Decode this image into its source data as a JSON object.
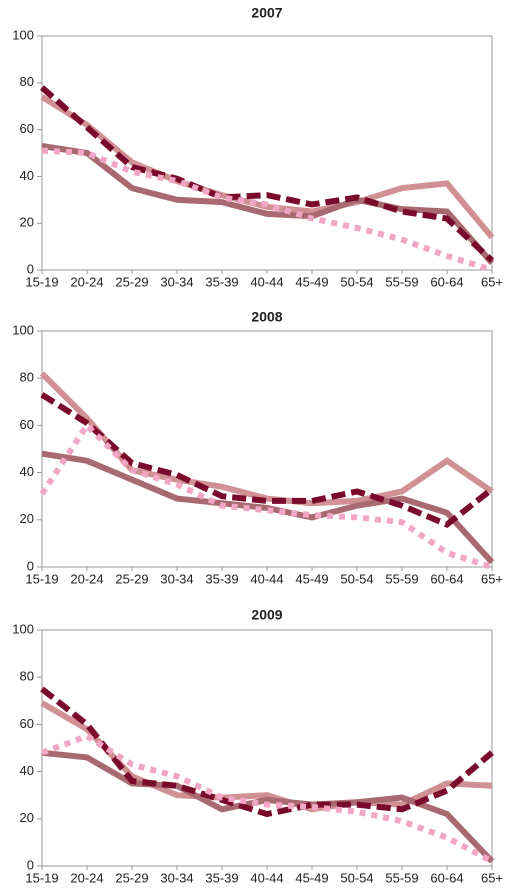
{
  "chart_data": [
    {
      "type": "line",
      "title": "2007",
      "categories": [
        "15-19",
        "20-24",
        "25-29",
        "30-34",
        "35-39",
        "40-44",
        "45-49",
        "50-54",
        "55-59",
        "60-64",
        "65+"
      ],
      "series": [
        {
          "color": "#d09094",
          "style": "solid",
          "values": [
            74,
            62,
            46,
            38,
            32,
            27,
            25,
            29,
            35,
            37,
            14
          ]
        },
        {
          "color": "#a86a70",
          "style": "solid",
          "values": [
            53,
            50,
            35,
            30,
            29,
            24,
            23,
            30,
            26,
            25,
            3
          ]
        },
        {
          "color": "#7a0a2c",
          "style": "dashed",
          "values": [
            78,
            61,
            44,
            39,
            31,
            32,
            28,
            31,
            25,
            22,
            4
          ]
        },
        {
          "color": "#f2a6c6",
          "style": "dotted",
          "values": [
            51,
            50,
            42,
            38,
            31,
            28,
            22,
            18,
            13,
            6,
            0
          ]
        }
      ],
      "ylim": [
        0,
        100
      ],
      "yticks": [
        0,
        20,
        40,
        60,
        80,
        100
      ]
    },
    {
      "type": "line",
      "title": "2008",
      "categories": [
        "15-19",
        "20-24",
        "25-29",
        "30-34",
        "35-39",
        "40-44",
        "45-49",
        "50-54",
        "55-59",
        "60-64",
        "65+"
      ],
      "series": [
        {
          "color": "#d09094",
          "style": "solid",
          "values": [
            82,
            63,
            41,
            37,
            34,
            29,
            27,
            28,
            32,
            45,
            32
          ]
        },
        {
          "color": "#a86a70",
          "style": "solid",
          "values": [
            48,
            45,
            37,
            29,
            27,
            25,
            21,
            26,
            29,
            23,
            2
          ]
        },
        {
          "color": "#7a0a2c",
          "style": "dashed",
          "values": [
            73,
            61,
            44,
            39,
            30,
            28,
            28,
            32,
            26,
            18,
            33
          ]
        },
        {
          "color": "#f2a6c6",
          "style": "dotted",
          "values": [
            31,
            60,
            41,
            35,
            26,
            24,
            22,
            21,
            19,
            6,
            0
          ]
        }
      ],
      "ylim": [
        0,
        100
      ],
      "yticks": [
        0,
        20,
        40,
        60,
        80,
        100
      ]
    },
    {
      "type": "line",
      "title": "2009",
      "categories": [
        "15-19",
        "20-24",
        "25-29",
        "30-34",
        "35-39",
        "40-44",
        "45-49",
        "50-54",
        "55-59",
        "60-64",
        "65+"
      ],
      "series": [
        {
          "color": "#d09094",
          "style": "solid",
          "values": [
            69,
            58,
            38,
            30,
            29,
            30,
            24,
            27,
            26,
            35,
            34
          ]
        },
        {
          "color": "#a86a70",
          "style": "solid",
          "values": [
            48,
            46,
            35,
            34,
            24,
            28,
            26,
            27,
            29,
            22,
            2
          ]
        },
        {
          "color": "#7a0a2c",
          "style": "dashed",
          "values": [
            75,
            60,
            36,
            34,
            28,
            22,
            26,
            26,
            24,
            32,
            48
          ]
        },
        {
          "color": "#f2a6c6",
          "style": "dotted",
          "values": [
            48,
            55,
            43,
            38,
            29,
            26,
            25,
            23,
            19,
            12,
            2
          ]
        }
      ],
      "ylim": [
        0,
        100
      ],
      "yticks": [
        0,
        20,
        40,
        60,
        80,
        100
      ]
    }
  ]
}
